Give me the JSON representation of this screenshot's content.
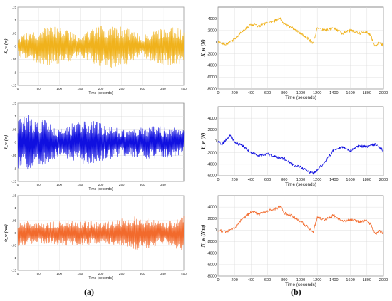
{
  "panel_labels": [
    "(a)",
    "(b)"
  ],
  "colors": {
    "yellow": "#f0b21c",
    "blue": "#1010e0",
    "orange": "#f26a2c"
  },
  "chart_data": [
    {
      "id": "xw",
      "type": "line",
      "panel": "(a)",
      "xlabel": "Time (seconds)",
      "ylabel": "X_w (m)",
      "xlim": [
        0,
        400
      ],
      "xticks": [
        0,
        50,
        100,
        150,
        200,
        250,
        300,
        350,
        400
      ],
      "ylim": [
        -0.15,
        0.15
      ],
      "yticks": [
        0.15,
        0.1,
        0.05,
        0,
        -0.05,
        -0.1,
        -0.15
      ],
      "color": "#f0b21c",
      "grid": true,
      "series": [
        {
          "amplitude": 0.085,
          "mean": 0.0
        }
      ]
    },
    {
      "id": "yw",
      "type": "line",
      "panel": "(a)",
      "xlabel": "Time (seconds)",
      "ylabel": "Y_w (m)",
      "xlim": [
        0,
        400
      ],
      "xticks": [
        0,
        50,
        100,
        150,
        200,
        250,
        300,
        350
      ],
      "ylim": [
        -0.15,
        0.15
      ],
      "yticks": [
        0.15,
        0.1,
        0.05,
        0,
        -0.05,
        -0.1,
        -0.15
      ],
      "color": "#1010e0",
      "grid": true,
      "series": [
        {
          "amplitude": 0.11,
          "mean": 0.0
        }
      ]
    },
    {
      "id": "psiw",
      "type": "line",
      "panel": "(a)",
      "xlabel": "Time (seconds)",
      "ylabel": "ψ_w (rad)",
      "xlim": [
        0,
        400
      ],
      "xticks": [
        0,
        50,
        100,
        150,
        200,
        250,
        300,
        350,
        400
      ],
      "ylim": [
        -0.15,
        0.15
      ],
      "yticks": [
        0.15,
        0.1,
        0.05,
        0,
        -0.05,
        -0.1,
        -0.15
      ],
      "color": "#f26a2c",
      "grid": true,
      "series": [
        {
          "amplitude": 0.09,
          "mean": 0.0
        }
      ]
    },
    {
      "id": "Xw",
      "type": "line",
      "panel": "(b)",
      "xlabel": "Time (seconds)",
      "ylabel": "X_w (N)",
      "xlim": [
        0,
        2000
      ],
      "xticks": [
        0,
        200,
        400,
        600,
        800,
        1000,
        1200,
        1400,
        1600,
        1800,
        2000
      ],
      "ylim": [
        -8000,
        6000
      ],
      "yticks": [
        4000,
        2000,
        0,
        -2000,
        -4000,
        -6000,
        -8000
      ],
      "color": "#f0b21c",
      "grid": true,
      "series": [
        {
          "x": [
            0,
            100,
            200,
            300,
            400,
            500,
            600,
            700,
            750,
            800,
            900,
            1000,
            1100,
            1150,
            1200,
            1300,
            1400,
            1500,
            1600,
            1700,
            1800,
            1850,
            1900,
            1950,
            2000
          ],
          "y": [
            0,
            -300,
            500,
            2000,
            3000,
            2800,
            3300,
            3700,
            4200,
            3000,
            2500,
            1500,
            500,
            -200,
            2300,
            2000,
            2500,
            1500,
            2000,
            1500,
            1800,
            1000,
            -700,
            -100,
            -500
          ]
        }
      ]
    },
    {
      "id": "Yw",
      "type": "line",
      "panel": "(b)",
      "xlabel": "Time (seconds)",
      "ylabel": "Y_w (N)",
      "xlim": [
        0,
        2000
      ],
      "xticks": [
        0,
        200,
        400,
        600,
        800,
        1000,
        1200,
        1400,
        1600,
        1800,
        2000
      ],
      "ylim": [
        -6000,
        6000
      ],
      "yticks": [
        4000,
        2000,
        0,
        -2000,
        -4000,
        -6000
      ],
      "color": "#1010e0",
      "grid": true,
      "series": [
        {
          "x": [
            0,
            50,
            100,
            150,
            200,
            300,
            400,
            500,
            600,
            700,
            800,
            900,
            1000,
            1100,
            1150,
            1200,
            1300,
            1400,
            1500,
            1600,
            1700,
            1800,
            1900,
            2000
          ],
          "y": [
            0,
            -500,
            300,
            1000,
            -200,
            -800,
            -2000,
            -2500,
            -2200,
            -2800,
            -3000,
            -4000,
            -4500,
            -5300,
            -5500,
            -5000,
            -3500,
            -1500,
            -1000,
            -1600,
            -800,
            -1000,
            -500,
            -1600
          ]
        }
      ]
    },
    {
      "id": "Nw",
      "type": "line",
      "panel": "(b)",
      "xlabel": "Time (seconds)",
      "ylabel": "N_w (N·m)",
      "xlim": [
        0,
        2000
      ],
      "xticks": [
        0,
        200,
        400,
        600,
        800,
        1000,
        1200,
        1400,
        1600,
        1800,
        2000
      ],
      "ylim": [
        -8000,
        6000
      ],
      "yticks": [
        4000,
        2000,
        0,
        -2000,
        -4000,
        -6000,
        -8000
      ],
      "color": "#f26a2c",
      "grid": true,
      "series": [
        {
          "x": [
            0,
            100,
            200,
            300,
            400,
            500,
            600,
            700,
            750,
            800,
            900,
            1000,
            1100,
            1150,
            1200,
            1300,
            1400,
            1500,
            1600,
            1700,
            1800,
            1850,
            1900,
            1950,
            2000
          ],
          "y": [
            0,
            -300,
            500,
            2000,
            3200,
            2800,
            3300,
            3700,
            4200,
            3000,
            2400,
            1500,
            400,
            -300,
            2200,
            1800,
            2600,
            1500,
            1800,
            1500,
            1700,
            900,
            -700,
            -200,
            -500
          ]
        }
      ]
    }
  ]
}
